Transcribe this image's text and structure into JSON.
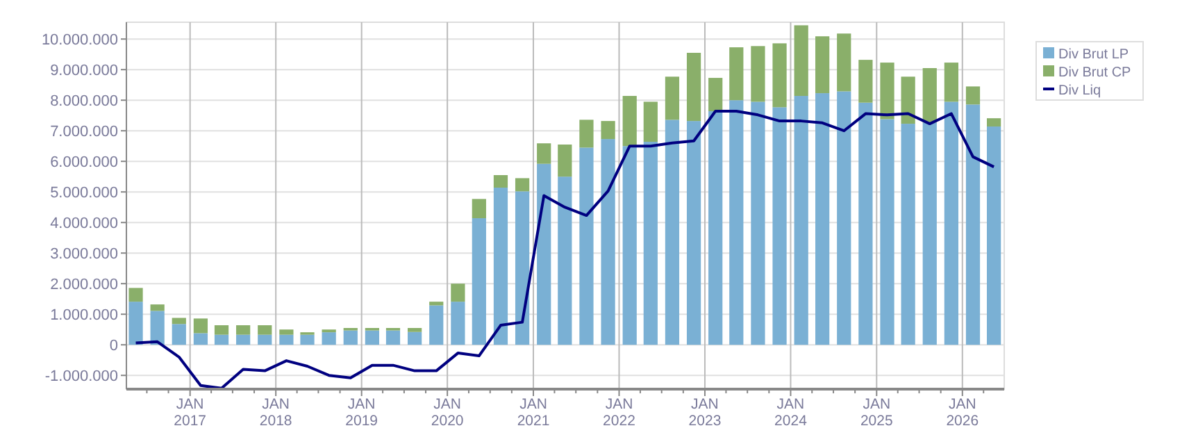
{
  "chart_data": {
    "type": "bar",
    "stacked": true,
    "x": [
      "2016-05-15",
      "2016-08-15",
      "2016-11-15",
      "2017-02-15",
      "2017-05-15",
      "2017-08-15",
      "2017-11-15",
      "2018-02-15",
      "2018-05-15",
      "2018-08-15",
      "2018-11-15",
      "2019-02-15",
      "2019-05-15",
      "2019-08-15",
      "2019-11-15",
      "2020-02-15",
      "2020-05-15",
      "2020-08-15",
      "2020-11-15",
      "2021-02-15",
      "2021-05-15",
      "2021-08-15",
      "2021-11-15",
      "2022-02-15",
      "2022-05-15",
      "2022-08-15",
      "2022-11-15",
      "2023-02-15",
      "2023-05-15",
      "2023-08-15",
      "2023-11-15",
      "2024-02-15",
      "2024-05-15",
      "2024-08-15",
      "2024-11-15",
      "2025-02-15",
      "2025-05-15",
      "2025-08-15",
      "2025-11-15",
      "2026-02-15",
      "2026-05-15"
    ],
    "series": [
      {
        "name": "Div Brut LP",
        "color": "#7ab0d4",
        "values": [
          1410000,
          1110000,
          680000,
          380000,
          330000,
          330000,
          330000,
          330000,
          330000,
          410000,
          470000,
          470000,
          470000,
          420000,
          1290000,
          1410000,
          4140000,
          5140000,
          5020000,
          5920000,
          5500000,
          6450000,
          6730000,
          6500000,
          6640000,
          7360000,
          7320000,
          7640000,
          8000000,
          7950000,
          7770000,
          8140000,
          8230000,
          8290000,
          7920000,
          7380000,
          7230000,
          7270000,
          7950000,
          7860000,
          7140000
        ]
      },
      {
        "name": "Div Brut CP",
        "color": "#8aaf6a",
        "values": [
          450000,
          210000,
          200000,
          480000,
          310000,
          310000,
          310000,
          170000,
          80000,
          90000,
          80000,
          80000,
          80000,
          130000,
          120000,
          590000,
          630000,
          410000,
          430000,
          670000,
          1050000,
          910000,
          590000,
          1640000,
          1310000,
          1410000,
          2230000,
          1090000,
          1730000,
          1820000,
          2090000,
          2310000,
          1860000,
          1890000,
          1400000,
          1850000,
          1540000,
          1780000,
          1280000,
          590000,
          270000
        ]
      },
      {
        "name": "Div Liq",
        "type": "line",
        "color": "#000080",
        "values": [
          60000,
          100000,
          -400000,
          -1330000,
          -1420000,
          -800000,
          -850000,
          -520000,
          -700000,
          -1000000,
          -1080000,
          -670000,
          -670000,
          -850000,
          -850000,
          -270000,
          -360000,
          640000,
          740000,
          4880000,
          4500000,
          4230000,
          5030000,
          6500000,
          6500000,
          6600000,
          6670000,
          7640000,
          7640000,
          7520000,
          7320000,
          7320000,
          7260000,
          7000000,
          7560000,
          7520000,
          7560000,
          7230000,
          7560000,
          6150000,
          5820000
        ]
      }
    ],
    "xlim": [
      "2016-04-05",
      "2026-06-28"
    ],
    "xticks": [
      {
        "value": "2016-07-01",
        "label": null
      },
      {
        "value": "2016-10-01",
        "label": null
      },
      {
        "value": "2017-01-01",
        "label": "JAN\n2017"
      },
      {
        "value": "2017-04-01",
        "label": null
      },
      {
        "value": "2017-07-01",
        "label": null
      },
      {
        "value": "2017-10-01",
        "label": null
      },
      {
        "value": "2018-01-01",
        "label": "JAN\n2018"
      },
      {
        "value": "2018-04-01",
        "label": null
      },
      {
        "value": "2018-07-01",
        "label": null
      },
      {
        "value": "2018-10-01",
        "label": null
      },
      {
        "value": "2019-01-01",
        "label": "JAN\n2019"
      },
      {
        "value": "2019-04-01",
        "label": null
      },
      {
        "value": "2019-07-01",
        "label": null
      },
      {
        "value": "2019-10-01",
        "label": null
      },
      {
        "value": "2020-01-01",
        "label": "JAN\n2020"
      },
      {
        "value": "2020-04-01",
        "label": null
      },
      {
        "value": "2020-07-01",
        "label": null
      },
      {
        "value": "2020-10-01",
        "label": null
      },
      {
        "value": "2021-01-01",
        "label": "JAN\n2021"
      },
      {
        "value": "2021-04-01",
        "label": null
      },
      {
        "value": "2021-07-01",
        "label": null
      },
      {
        "value": "2021-10-01",
        "label": null
      },
      {
        "value": "2022-01-01",
        "label": "JAN\n2022"
      },
      {
        "value": "2022-04-01",
        "label": null
      },
      {
        "value": "2022-07-01",
        "label": null
      },
      {
        "value": "2022-10-01",
        "label": null
      },
      {
        "value": "2023-01-01",
        "label": "JAN\n2023"
      },
      {
        "value": "2023-04-01",
        "label": null
      },
      {
        "value": "2023-07-01",
        "label": null
      },
      {
        "value": "2023-10-01",
        "label": null
      },
      {
        "value": "2024-01-01",
        "label": "JAN\n2024"
      },
      {
        "value": "2024-04-01",
        "label": null
      },
      {
        "value": "2024-07-01",
        "label": null
      },
      {
        "value": "2024-10-01",
        "label": null
      },
      {
        "value": "2025-01-01",
        "label": "JAN\n2025"
      },
      {
        "value": "2025-04-01",
        "label": null
      },
      {
        "value": "2025-07-01",
        "label": null
      },
      {
        "value": "2025-10-01",
        "label": null
      },
      {
        "value": "2026-01-01",
        "label": "JAN\n2026"
      },
      {
        "value": "2026-04-01",
        "label": null
      }
    ],
    "ylim": [
      -1450000,
      10550000
    ],
    "yticks": [
      {
        "value": -1000000,
        "label": "-1.000.000"
      },
      0,
      {
        "value": 1000000,
        "label": "1.000.000"
      },
      {
        "value": 2000000,
        "label": "2.000.000"
      },
      {
        "value": 3000000,
        "label": "3.000.000"
      },
      {
        "value": 4000000,
        "label": "4.000.000"
      },
      {
        "value": 5000000,
        "label": "5.000.000"
      },
      {
        "value": 6000000,
        "label": "6.000.000"
      },
      {
        "value": 7000000,
        "label": "7.000.000"
      },
      {
        "value": 8000000,
        "label": "8.000.000"
      },
      {
        "value": 9000000,
        "label": "9.000.000"
      },
      {
        "value": 10000000,
        "label": "10.000.000"
      }
    ],
    "grid": true,
    "legend": "top right",
    "line_style": "solid"
  }
}
